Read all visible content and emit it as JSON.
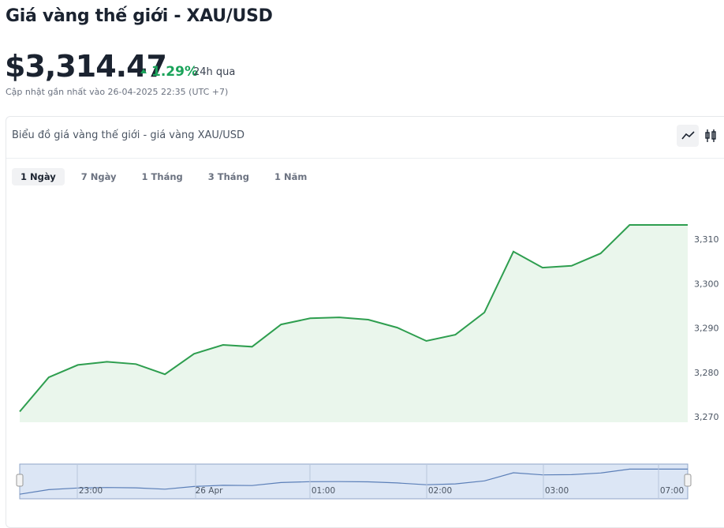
{
  "header": {
    "title": "Giá vàng thế giới - XAU/USD",
    "price": "$3,314.47",
    "change": "1.29%",
    "period": "24h qua",
    "updated": "Cập nhật gần nhất vào 26-04-2025 22:35 (UTC +7)"
  },
  "tabs": [
    "1 Ngày",
    "7 Ngày",
    "1 Tháng",
    "3 Tháng",
    "1 Năm"
  ],
  "chart_data": {
    "type": "area",
    "title": "Biểu đồ giá vàng thế giới - giá vàng XAU/USD",
    "values": [
      3271.2,
      3278.9,
      3281.7,
      3282.4,
      3281.9,
      3279.6,
      3284.2,
      3286.2,
      3285.8,
      3290.8,
      3292.2,
      3292.4,
      3291.9,
      3290.1,
      3287.1,
      3288.5,
      3293.5,
      3307.2,
      3303.6,
      3304.0,
      3306.8,
      3313.2,
      3313.2,
      3313.2
    ],
    "color": "#2e9e4f",
    "ylim": [
      3268.8,
      3321.2
    ],
    "yticks": [
      {
        "value": 3270,
        "label": "3,270"
      },
      {
        "value": 3280,
        "label": "3,280"
      },
      {
        "value": 3290,
        "label": "3,290"
      },
      {
        "value": 3300,
        "label": "3,300"
      },
      {
        "value": 3310,
        "label": "3,310"
      }
    ],
    "grid": false,
    "navigator_labels": [
      "23:00",
      "26 Apr",
      "01:00",
      "02:00",
      "03:00",
      "07:00"
    ]
  }
}
